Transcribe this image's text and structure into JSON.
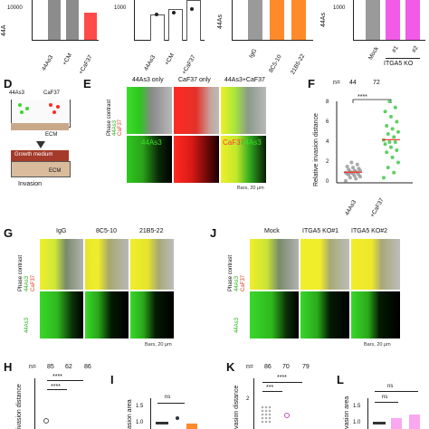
{
  "panel_letters": {
    "D": "D",
    "E": "E",
    "F": "F",
    "G": "G",
    "J": "J",
    "H": "H",
    "I": "I",
    "K": "K",
    "L": "L"
  },
  "top_row": {
    "chart1": {
      "ytick": "10000",
      "ylab_frag": "44A",
      "xticks": [
        "44As3",
        "+CM",
        "+CaF37"
      ]
    },
    "chart2": {
      "ytick": "1000",
      "xticks": [
        "44As3",
        "+CM",
        "+CaF37"
      ]
    },
    "chart3": {
      "ylab_frag": "44As",
      "xticks": [
        "IgG",
        "8C5-10",
        "21B5-22"
      ]
    },
    "chart4": {
      "ylab_frag": "44As",
      "ytick": "1000",
      "xticks": [
        "Mock",
        "#1",
        "#2"
      ],
      "group_label": "ITGA5 KO"
    }
  },
  "panel_D": {
    "cell1": "44As3",
    "cell2": "CaF37",
    "ecm_top": "ECM",
    "growth": "Growth medium",
    "ecm_bottom": "ECM",
    "caption": "Invasion"
  },
  "panel_E": {
    "cols": [
      "44As3 only",
      "CaF37 only",
      "44As3+CaF37"
    ],
    "row1_label": "Phase contrast",
    "row1_sub1": "44As3",
    "row1_sub2": "CaF37",
    "tag_green": "44As3",
    "tag_red": "CaF37",
    "tag_merge": "44As3",
    "bars": "Bars, 20 μm"
  },
  "panel_F": {
    "n_label": "n=",
    "n_values": [
      "44",
      "72"
    ],
    "sig": "****",
    "ylabel": "Relative invasion distance",
    "yticks": [
      "0",
      "2",
      "4",
      "6",
      "8"
    ],
    "xticks": [
      "44As3",
      "+CaF37"
    ]
  },
  "panel_G": {
    "cols": [
      "IgG",
      "8C5-10",
      "21B5-22"
    ],
    "row1_label": "Phase contrast",
    "row1_sub1": "44As3",
    "row1_sub2": "CaF37",
    "row2_label": "44As3",
    "bars": "Bars, 20 μm"
  },
  "panel_J": {
    "cols": [
      "Mock",
      "ITGA5 KO#1",
      "ITGA5 KO#2"
    ],
    "row1_label": "Phase contrast",
    "row1_sub1": "44As3",
    "row1_sub2": "CaF37",
    "row2_label": "44As3",
    "bars": "Bars, 20 μm"
  },
  "panel_H": {
    "n_label": "n=",
    "n_values": [
      "85",
      "62",
      "86"
    ],
    "sig": "****",
    "ylabel_frag": "ivasion distance"
  },
  "panel_I": {
    "ylabel_frag": "asion area",
    "ns": "ns",
    "yticks": [
      "1.5",
      "1.0"
    ]
  },
  "panel_K": {
    "n_label": "n=",
    "n_values": [
      "86",
      "70",
      "79"
    ],
    "sig1": "****",
    "sig2": "***",
    "ylabel_frag": "vasion distance",
    "ytick": "2"
  },
  "panel_L": {
    "ylabel_frag": "vasion area",
    "ns1": "ns",
    "ns2": "ns",
    "yticks": [
      "1.5",
      "1.0"
    ]
  },
  "colors": {
    "dark_gray_bar": "#8c8c8c",
    "red_bar": "#ff4a4a",
    "orange_bar": "#ff8a2a",
    "pink_bar": "#f25ae8",
    "green_fluor": "#39d82a",
    "red_fluor": "#ff2a22",
    "yellow_merge": "#f0ee2a",
    "scatter_gray": "#9a9a9a",
    "scatter_green": "#43c84a"
  },
  "chart_data": [
    {
      "type": "scatter",
      "title": "",
      "ylabel": "Relative invasion distance",
      "categories": [
        "44As3",
        "+CaF37"
      ],
      "ylim": [
        0,
        8
      ],
      "series": [
        {
          "values": [
            0.2,
            0.4,
            0.5,
            0.6,
            0.7,
            0.8,
            0.8,
            0.9,
            0.9,
            1.0,
            1.0,
            1.0,
            1.1,
            1.1,
            1.2,
            1.2,
            1.3,
            1.4,
            1.5,
            1.6,
            1.8,
            2.0
          ]
        },
        {
          "values": [
            0.5,
            1.0,
            1.5,
            2.0,
            2.5,
            3.0,
            3.2,
            3.5,
            3.8,
            4.0,
            4.0,
            4.2,
            4.5,
            4.8,
            5.0,
            5.3,
            5.6,
            6.0,
            6.5,
            7.0,
            7.4,
            8.0
          ]
        }
      ]
    }
  ]
}
